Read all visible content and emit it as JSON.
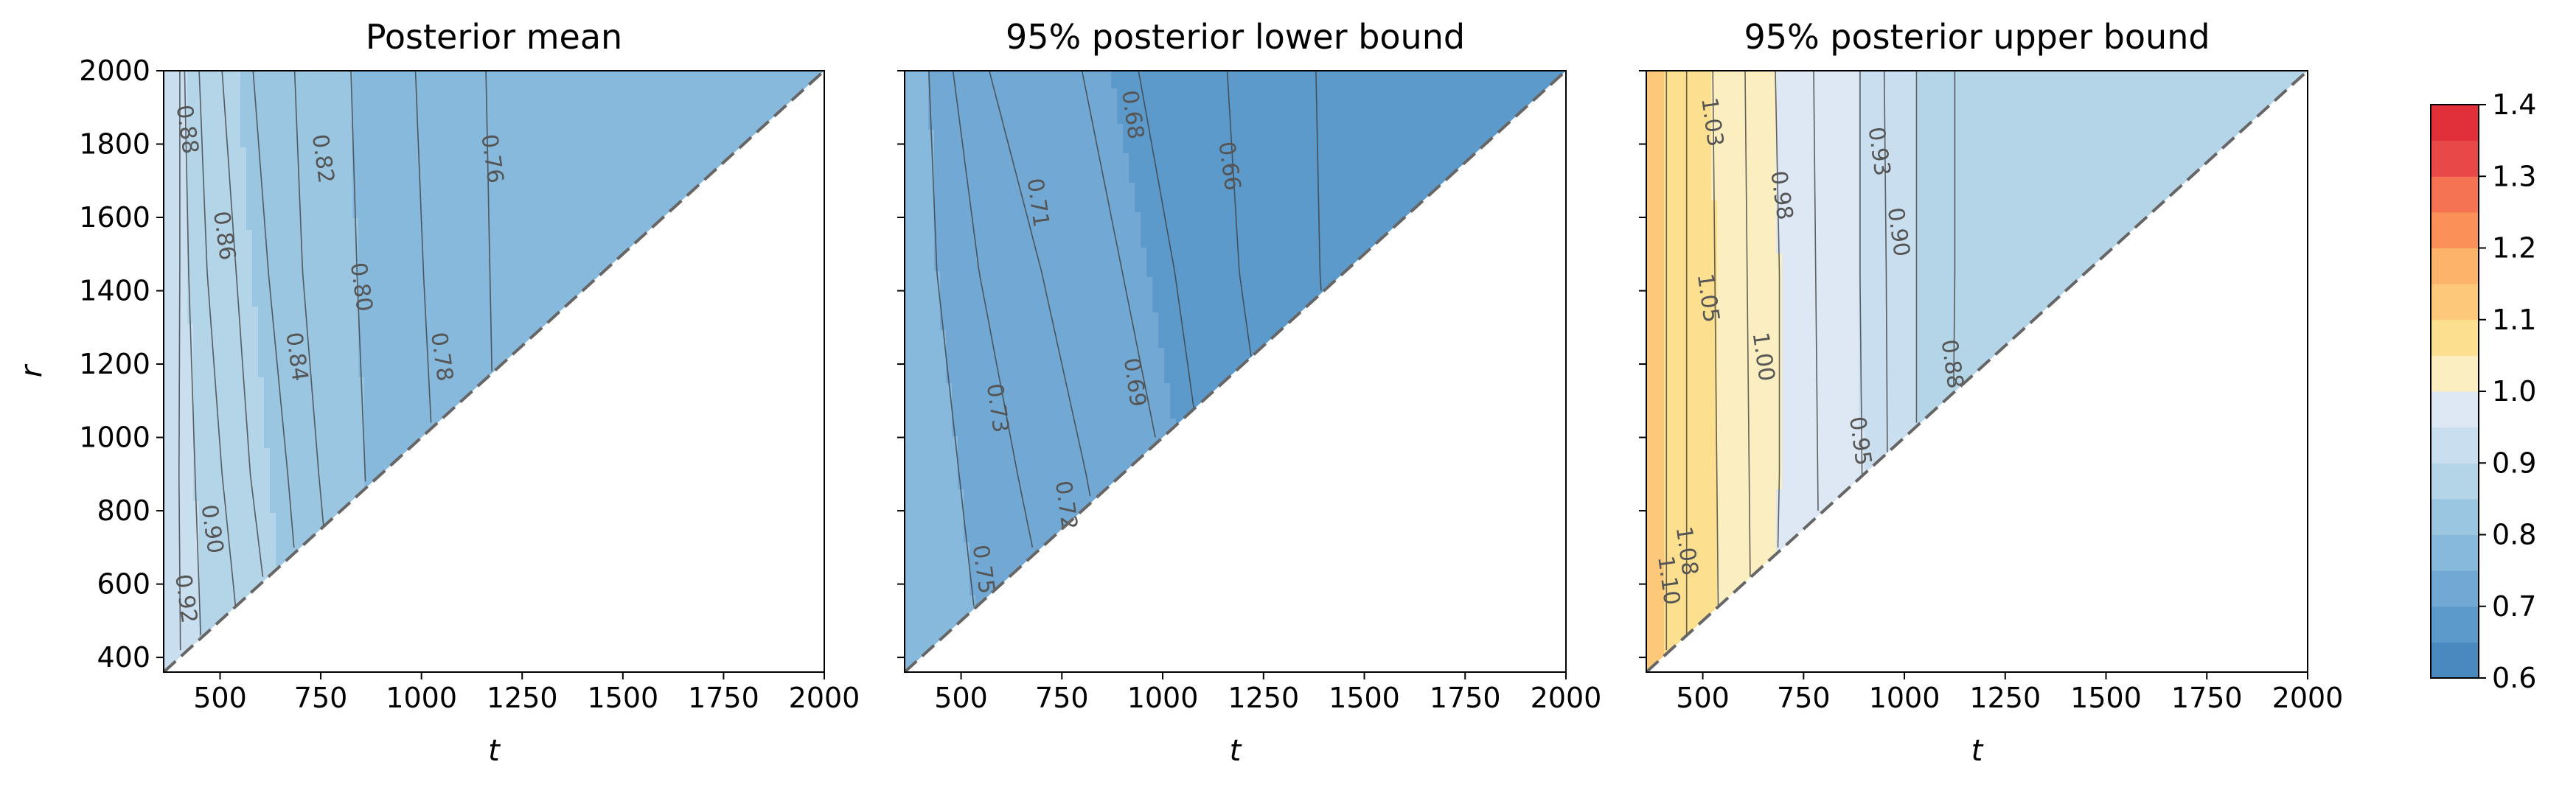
{
  "figure": {
    "panels": [
      {
        "id": "mean",
        "title": "Posterior mean",
        "xlabel": "t",
        "ylabel": "r",
        "show_ytick_labels": true
      },
      {
        "id": "lower",
        "title": "95% posterior lower bound",
        "xlabel": "t",
        "ylabel": "",
        "show_ytick_labels": false
      },
      {
        "id": "upper",
        "title": "95% posterior upper bound",
        "xlabel": "t",
        "ylabel": "",
        "show_ytick_labels": false
      }
    ],
    "colorbar": {
      "ticks": [
        "0.6",
        "0.7",
        "0.8",
        "0.9",
        "1.0",
        "1.1",
        "1.2",
        "1.3",
        "1.4"
      ]
    }
  },
  "chart_data": {
    "type": "heatmap",
    "subtype": "filled-contour",
    "xlim": [
      360,
      2000
    ],
    "ylim": [
      360,
      2000
    ],
    "xticks": [
      500,
      750,
      1000,
      1250,
      1500,
      1750,
      2000
    ],
    "yticks": [
      400,
      600,
      800,
      1000,
      1200,
      1400,
      1600,
      1800,
      2000
    ],
    "valid_region": "r > t (upper-left triangle, above dashed diagonal r = t)",
    "diagonal_line": {
      "style": "dashed",
      "color": "#666666"
    },
    "grid": false,
    "colormap": {
      "levels": [
        0.6,
        0.65,
        0.7,
        0.75,
        0.8,
        0.85,
        0.9,
        0.95,
        1.0,
        1.05,
        1.1,
        1.15,
        1.2,
        1.25,
        1.3,
        1.35,
        1.4
      ],
      "colors": [
        "#4a88c0",
        "#5c9acb",
        "#72a9d4",
        "#86b9dc",
        "#9ac6e2",
        "#b4d4e8",
        "#c9deef",
        "#dde8f4",
        "#fbefc1",
        "#fde08f",
        "#fdc879",
        "#fdb36a",
        "#fb9158",
        "#f57253",
        "#e94848",
        "#e2303a"
      ]
    },
    "panels": [
      {
        "name": "Posterior mean",
        "iso": [
          {
            "v": 0.92,
            "t": [
              402,
              398,
              400,
              400
            ]
          },
          {
            "v": 0.9,
            "t": [
              455,
              438,
              422,
              412
            ]
          },
          {
            "v": 0.88,
            "t": [
              555,
              505,
              468,
              448
            ]
          },
          {
            "v": 0.86,
            "t": [
              635,
              575,
              540,
              505
            ]
          },
          {
            "v": 0.84,
            "t": [
              710,
              668,
              620,
              582
            ]
          },
          {
            "v": 0.82,
            "t": [
              790,
              745,
              705,
              685
            ]
          },
          {
            "v": 0.8,
            "t": [
              885,
              860,
              840,
              825
            ]
          },
          {
            "v": 0.78,
            "t": [
              1050,
              1030,
              1005,
              985
            ]
          },
          {
            "v": 0.76,
            "t": [
              1190,
              1180,
              1170,
              1160
            ]
          }
        ],
        "labels": [
          {
            "text": "0.88",
            "t": 418,
            "r": 1840
          },
          {
            "text": "0.86",
            "t": 510,
            "r": 1550
          },
          {
            "text": "0.84",
            "t": 690,
            "r": 1220
          },
          {
            "text": "0.82",
            "t": 755,
            "r": 1760
          },
          {
            "text": "0.80",
            "t": 850,
            "r": 1410
          },
          {
            "text": "0.78",
            "t": 1050,
            "r": 1220
          },
          {
            "text": "0.76",
            "t": 1175,
            "r": 1760
          },
          {
            "text": "0.90",
            "t": 480,
            "r": 750
          },
          {
            "text": "0.92",
            "t": 415,
            "r": 560
          }
        ]
      },
      {
        "name": "95% posterior lower bound",
        "iso": [
          {
            "v": 0.75,
            "t": [
              550,
              495,
              440,
              420
            ]
          },
          {
            "v": 0.73,
            "t": [
              740,
              640,
              545,
              480
            ]
          },
          {
            "v": 0.72,
            "t": [
              900,
              810,
              700,
              570
            ]
          },
          {
            "v": 0.71,
            "t": [
              1050,
              1000,
              900,
              800
            ]
          },
          {
            "v": 0.69,
            "t": [
              1160,
              1100,
              1030,
              940
            ]
          },
          {
            "v": 0.68,
            "t": [
              1330,
              1260,
              1190,
              1160
            ]
          },
          {
            "v": 0.66,
            "t": [
              1460,
              1420,
              1390,
              1380
            ]
          }
        ],
        "labels": [
          {
            "text": "0.75",
            "t": 555,
            "r": 640
          },
          {
            "text": "0.73",
            "t": 590,
            "r": 1080
          },
          {
            "text": "0.72",
            "t": 760,
            "r": 815
          },
          {
            "text": "0.71",
            "t": 690,
            "r": 1640
          },
          {
            "text": "0.69",
            "t": 930,
            "r": 1150
          },
          {
            "text": "0.68",
            "t": 925,
            "r": 1880
          },
          {
            "text": "0.66",
            "t": 1165,
            "r": 1740
          }
        ]
      },
      {
        "name": "95% posterior upper bound",
        "iso": [
          {
            "v": 1.1,
            "t": [
              410,
              410,
              410,
              410
            ]
          },
          {
            "v": 1.08,
            "t": [
              460,
              460,
              460,
              460
            ]
          },
          {
            "v": 1.05,
            "t": [
              540,
              535,
              530,
              525
            ]
          },
          {
            "v": 1.03,
            "t": [
              620,
              615,
              610,
              605
            ]
          },
          {
            "v": 1.0,
            "t": [
              680,
              690,
              690,
              680
            ]
          },
          {
            "v": 0.98,
            "t": [
              790,
              785,
              780,
              775
            ]
          },
          {
            "v": 0.95,
            "t": [
              900,
              895,
              890,
              890
            ]
          },
          {
            "v": 0.93,
            "t": [
              960,
              958,
              955,
              950
            ]
          },
          {
            "v": 0.9,
            "t": [
              1030,
              1030,
              1030,
              1030
            ]
          },
          {
            "v": 0.88,
            "t": [
              1120,
              1120,
              1125,
              1125
            ]
          }
        ],
        "labels": [
          {
            "text": "1.10",
            "t": 415,
            "r": 610
          },
          {
            "text": "1.08",
            "t": 460,
            "r": 690
          },
          {
            "text": "1.05",
            "t": 513,
            "r": 1380
          },
          {
            "text": "1.03",
            "t": 523,
            "r": 1860
          },
          {
            "text": "1.00",
            "t": 650,
            "r": 1220
          },
          {
            "text": "0.98",
            "t": 695,
            "r": 1660
          },
          {
            "text": "0.95",
            "t": 890,
            "r": 990
          },
          {
            "text": "0.93",
            "t": 937,
            "r": 1780
          },
          {
            "text": "0.90",
            "t": 985,
            "r": 1560
          },
          {
            "text": "0.88",
            "t": 1118,
            "r": 1200
          }
        ]
      }
    ]
  }
}
